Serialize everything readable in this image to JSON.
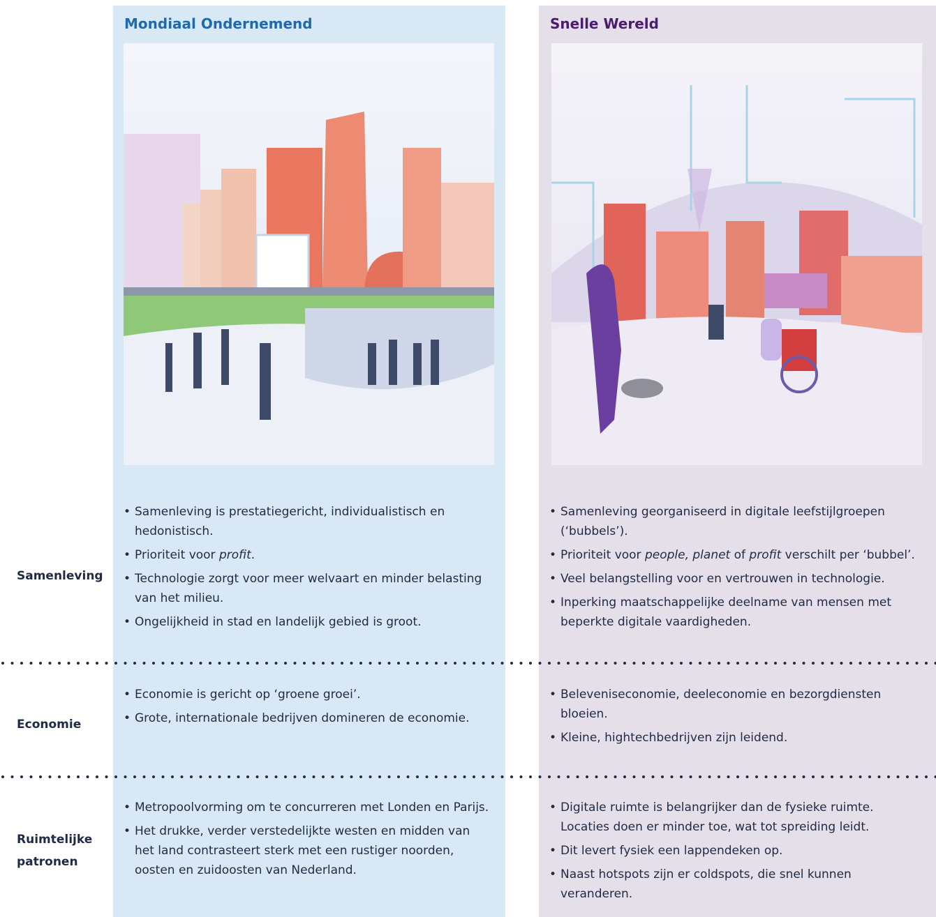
{
  "row_labels": [
    "Samenleving",
    "Economie",
    "Ruimtelijke patronen"
  ],
  "columns": [
    {
      "title": "Mondiaal Ondernemend",
      "sections": [
        [
          [
            "Samenleving is prestatiegericht, individualistisch en hedonistisch."
          ],
          [
            "Prioriteit voor ",
            {
              "em": "profit"
            },
            "."
          ],
          [
            "Technologie zorgt voor meer welvaart en minder belasting van het milieu."
          ],
          [
            "Ongelijkheid in stad en landelijk gebied is groot."
          ]
        ],
        [
          [
            "Economie is gericht op ‘groene groei’."
          ],
          [
            "Grote, internationale bedrijven domineren de economie."
          ]
        ],
        [
          [
            "Metropoolvorming om te concurreren met Londen en Parijs."
          ],
          [
            "Het drukke, verder verstedelijkte westen en midden van het land contrasteert sterk met een rustiger noorden, oosten en zuidoosten van Nederland."
          ]
        ]
      ]
    },
    {
      "title": "Snelle Wereld",
      "sections": [
        [
          [
            "Samenleving georganiseerd in digitale leefstijlgroepen (‘bubbels’)."
          ],
          [
            "Prioriteit voor ",
            {
              "em": "people, planet"
            },
            " of ",
            {
              "em": "profit"
            },
            " verschilt per ‘bubbel’."
          ],
          [
            "Veel belangstelling voor en vertrouwen in technologie."
          ],
          [
            "Inperking maatschappelijke deelname van mensen met beperkte digitale vaardigheden."
          ]
        ],
        [
          [
            "Beleveniseconomie, deeleconomie en bezorgdiensten bloeien."
          ],
          [
            "Kleine, hightechbedrijven zijn leidend."
          ]
        ],
        [
          [
            "Digitale ruimte is belangrijker dan de fysieke ruimte. Locaties doen er minder toe, wat tot spreiding leidt."
          ],
          [
            "Dit levert fysiek een lappendeken op."
          ],
          [
            "Naast hotspots zijn er coldspots, die snel kunnen veranderen."
          ]
        ]
      ]
    }
  ]
}
